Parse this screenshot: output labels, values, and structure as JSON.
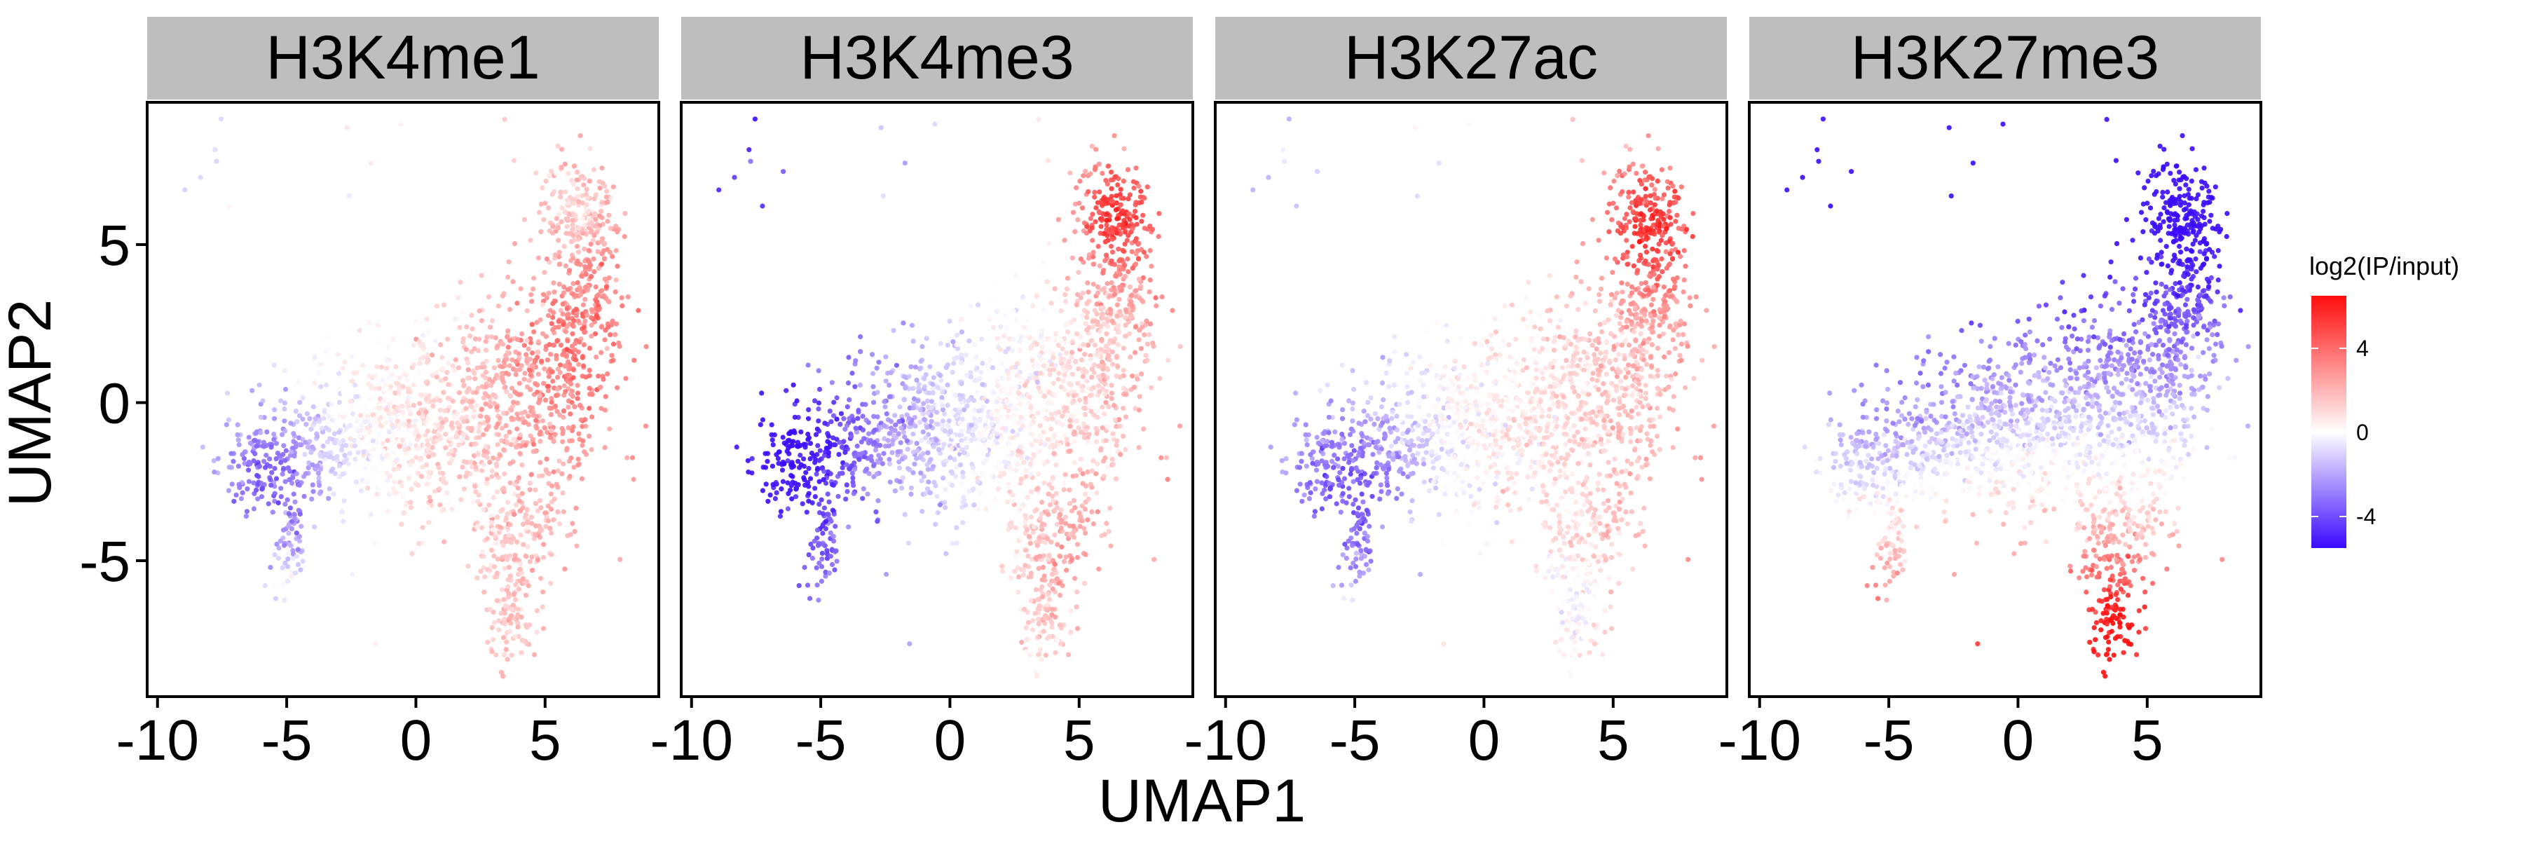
{
  "chart_data": {
    "type": "scatter",
    "xlabel": "UMAP1",
    "ylabel": "UMAP2",
    "xlim": [
      -10.4,
      9.4
    ],
    "ylim": [
      -9.3,
      9.5
    ],
    "x_ticks": [
      -10,
      -5,
      0,
      5
    ],
    "x_tick_labels": [
      "-10",
      "-5",
      "0",
      "5"
    ],
    "y_ticks": [
      -5,
      0,
      5
    ],
    "y_tick_labels": [
      "-5",
      "0",
      "5"
    ],
    "grid": false,
    "panels": [
      {
        "title": "H3K4me1"
      },
      {
        "title": "H3K4me3"
      },
      {
        "title": "H3K27ac"
      },
      {
        "title": "H3K27me3"
      }
    ],
    "legend": {
      "title": "log2(IP/input)",
      "position": "right",
      "colors": {
        "low": "#3a0aff",
        "mid": "#ffffff",
        "high": "#ff0d0d"
      },
      "range": [
        -5.5,
        6.5
      ],
      "ticks": [
        4,
        0,
        -4
      ],
      "tick_labels": [
        "4",
        "0",
        "-4"
      ]
    },
    "colors": {
      "strip_bg": "#bebebe",
      "panel_border": "#000000"
    }
  }
}
